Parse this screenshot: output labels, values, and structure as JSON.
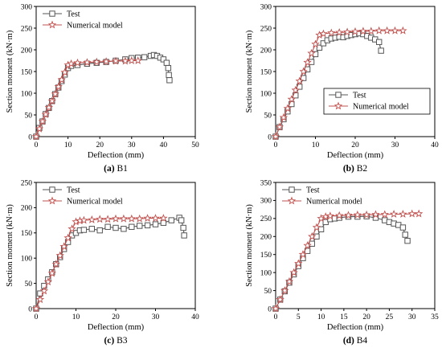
{
  "colors": {
    "test": "#555555",
    "numerical": "#c0504d",
    "axis": "#000000"
  },
  "chart_data": [
    {
      "type": "line",
      "panel_letter": "(a)",
      "panel_name": "B1",
      "xlabel": "Deflection (mm)",
      "ylabel": "Section moment (kN·m)",
      "xlim": [
        0,
        50
      ],
      "ylim": [
        0,
        300
      ],
      "xticks": [
        0,
        10,
        20,
        30,
        40,
        50
      ],
      "yticks": [
        0,
        50,
        100,
        150,
        200,
        250,
        300
      ],
      "legend": "top-left",
      "series": [
        {
          "name": "Test",
          "marker": "square",
          "x": [
            0,
            1,
            2,
            3,
            4,
            5,
            6,
            7,
            8,
            9,
            10,
            11,
            13,
            16,
            19,
            22,
            25,
            28,
            30,
            32,
            34,
            36,
            37,
            38,
            39,
            40,
            41,
            41.5,
            41.7,
            41.9
          ],
          "y": [
            0,
            20,
            35,
            52,
            66,
            82,
            98,
            113,
            128,
            143,
            158,
            163,
            165,
            168,
            170,
            172,
            175,
            178,
            181,
            182,
            183,
            186,
            188,
            186,
            182,
            178,
            170,
            158,
            142,
            130
          ]
        },
        {
          "name": "Numerical model",
          "marker": "star",
          "x": [
            0,
            1,
            2,
            3,
            4,
            5,
            6,
            7,
            8,
            9,
            10,
            11,
            13,
            16,
            19,
            22,
            25,
            28,
            30,
            32
          ],
          "y": [
            0,
            18,
            35,
            51,
            67,
            82,
            98,
            115,
            131,
            148,
            165,
            168,
            170,
            171,
            172,
            173,
            174,
            174,
            175,
            175
          ]
        }
      ]
    },
    {
      "type": "line",
      "panel_letter": "(b)",
      "panel_name": "B2",
      "xlabel": "Deflection (mm)",
      "ylabel": "Section moment (kN·m)",
      "xlim": [
        0,
        40
      ],
      "ylim": [
        0,
        300
      ],
      "xticks": [
        0,
        10,
        20,
        30,
        40
      ],
      "yticks": [
        0,
        50,
        100,
        150,
        200,
        250,
        300
      ],
      "legend": "bottom-right",
      "series": [
        {
          "name": "Test",
          "marker": "square",
          "x": [
            0,
            1,
            2,
            3,
            4,
            5,
            6,
            7,
            8,
            9,
            10,
            11,
            12,
            13,
            14,
            15,
            16,
            17,
            18,
            19,
            20,
            21,
            22,
            23,
            24,
            25,
            26,
            26.5
          ],
          "y": [
            0,
            22,
            40,
            58,
            75,
            95,
            115,
            135,
            155,
            172,
            190,
            205,
            215,
            222,
            226,
            228,
            230,
            229,
            232,
            234,
            236,
            238,
            236,
            232,
            228,
            224,
            218,
            198
          ]
        },
        {
          "name": "Numerical model",
          "marker": "star",
          "x": [
            0,
            1,
            2,
            3,
            4,
            5,
            6,
            7,
            8,
            9,
            10,
            11,
            12,
            14,
            16,
            18,
            20,
            22,
            24,
            26,
            28,
            30,
            32
          ],
          "y": [
            0,
            22,
            44,
            65,
            86,
            107,
            128,
            150,
            171,
            192,
            213,
            234,
            237,
            239,
            240,
            241,
            242,
            243,
            243,
            244,
            244,
            244,
            244
          ]
        }
      ]
    },
    {
      "type": "line",
      "panel_letter": "(c)",
      "panel_name": "B3",
      "xlabel": "Deflection (mm)",
      "ylabel": "Section moment (kN·m)",
      "xlim": [
        0,
        40
      ],
      "ylim": [
        0,
        250
      ],
      "xticks": [
        0,
        10,
        20,
        30,
        40
      ],
      "yticks": [
        0,
        50,
        100,
        150,
        200,
        250
      ],
      "legend": "top-left",
      "series": [
        {
          "name": "Test",
          "marker": "square",
          "x": [
            0,
            1,
            2,
            3,
            4,
            5,
            6,
            7,
            8,
            9,
            10,
            11,
            12,
            14,
            16,
            18,
            20,
            22,
            24,
            26,
            28,
            30,
            32,
            34,
            36,
            36.5,
            37,
            37.2
          ],
          "y": [
            0,
            30,
            45,
            58,
            72,
            88,
            102,
            118,
            132,
            145,
            150,
            155,
            156,
            158,
            155,
            162,
            160,
            158,
            162,
            164,
            165,
            167,
            170,
            175,
            180,
            175,
            160,
            145
          ]
        },
        {
          "name": "Numerical model",
          "marker": "star",
          "x": [
            0,
            1,
            2,
            3,
            4,
            5,
            6,
            7,
            8,
            9,
            10,
            11,
            12,
            14,
            16,
            18,
            20,
            22,
            24,
            26,
            28,
            30,
            32
          ],
          "y": [
            0,
            18,
            35,
            53,
            70,
            88,
            105,
            123,
            140,
            158,
            172,
            174,
            175,
            176,
            177,
            177,
            178,
            178,
            178,
            178,
            179,
            179,
            179
          ]
        }
      ]
    },
    {
      "type": "line",
      "panel_letter": "(d)",
      "panel_name": "B4",
      "xlabel": "Deflection (mm)",
      "ylabel": "Section moment (kN·m)",
      "xlim": [
        0,
        35
      ],
      "ylim": [
        0,
        350
      ],
      "xticks": [
        0,
        5,
        10,
        15,
        20,
        25,
        30,
        35
      ],
      "yticks": [
        0,
        50,
        100,
        150,
        200,
        250,
        300,
        350
      ],
      "legend": "top-left",
      "series": [
        {
          "name": "Test",
          "marker": "square",
          "x": [
            0,
            1,
            2,
            3,
            4,
            5,
            6,
            7,
            8,
            9,
            10,
            11,
            12,
            13,
            14,
            16,
            18,
            20,
            22,
            24,
            25,
            26,
            27,
            28,
            28.5,
            29
          ],
          "y": [
            0,
            25,
            48,
            72,
            95,
            118,
            140,
            160,
            180,
            200,
            220,
            240,
            248,
            250,
            252,
            255,
            255,
            256,
            252,
            245,
            240,
            236,
            232,
            225,
            205,
            188
          ]
        },
        {
          "name": "Numerical model",
          "marker": "star",
          "x": [
            0,
            1,
            2,
            3,
            4,
            5,
            6,
            7,
            8,
            9,
            10,
            11,
            12,
            14,
            16,
            18,
            20,
            22,
            24,
            26,
            28,
            30,
            31.5
          ],
          "y": [
            0,
            25,
            50,
            75,
            100,
            125,
            150,
            175,
            200,
            225,
            250,
            255,
            257,
            258,
            259,
            260,
            260,
            261,
            261,
            262,
            262,
            263,
            263
          ]
        }
      ]
    }
  ]
}
